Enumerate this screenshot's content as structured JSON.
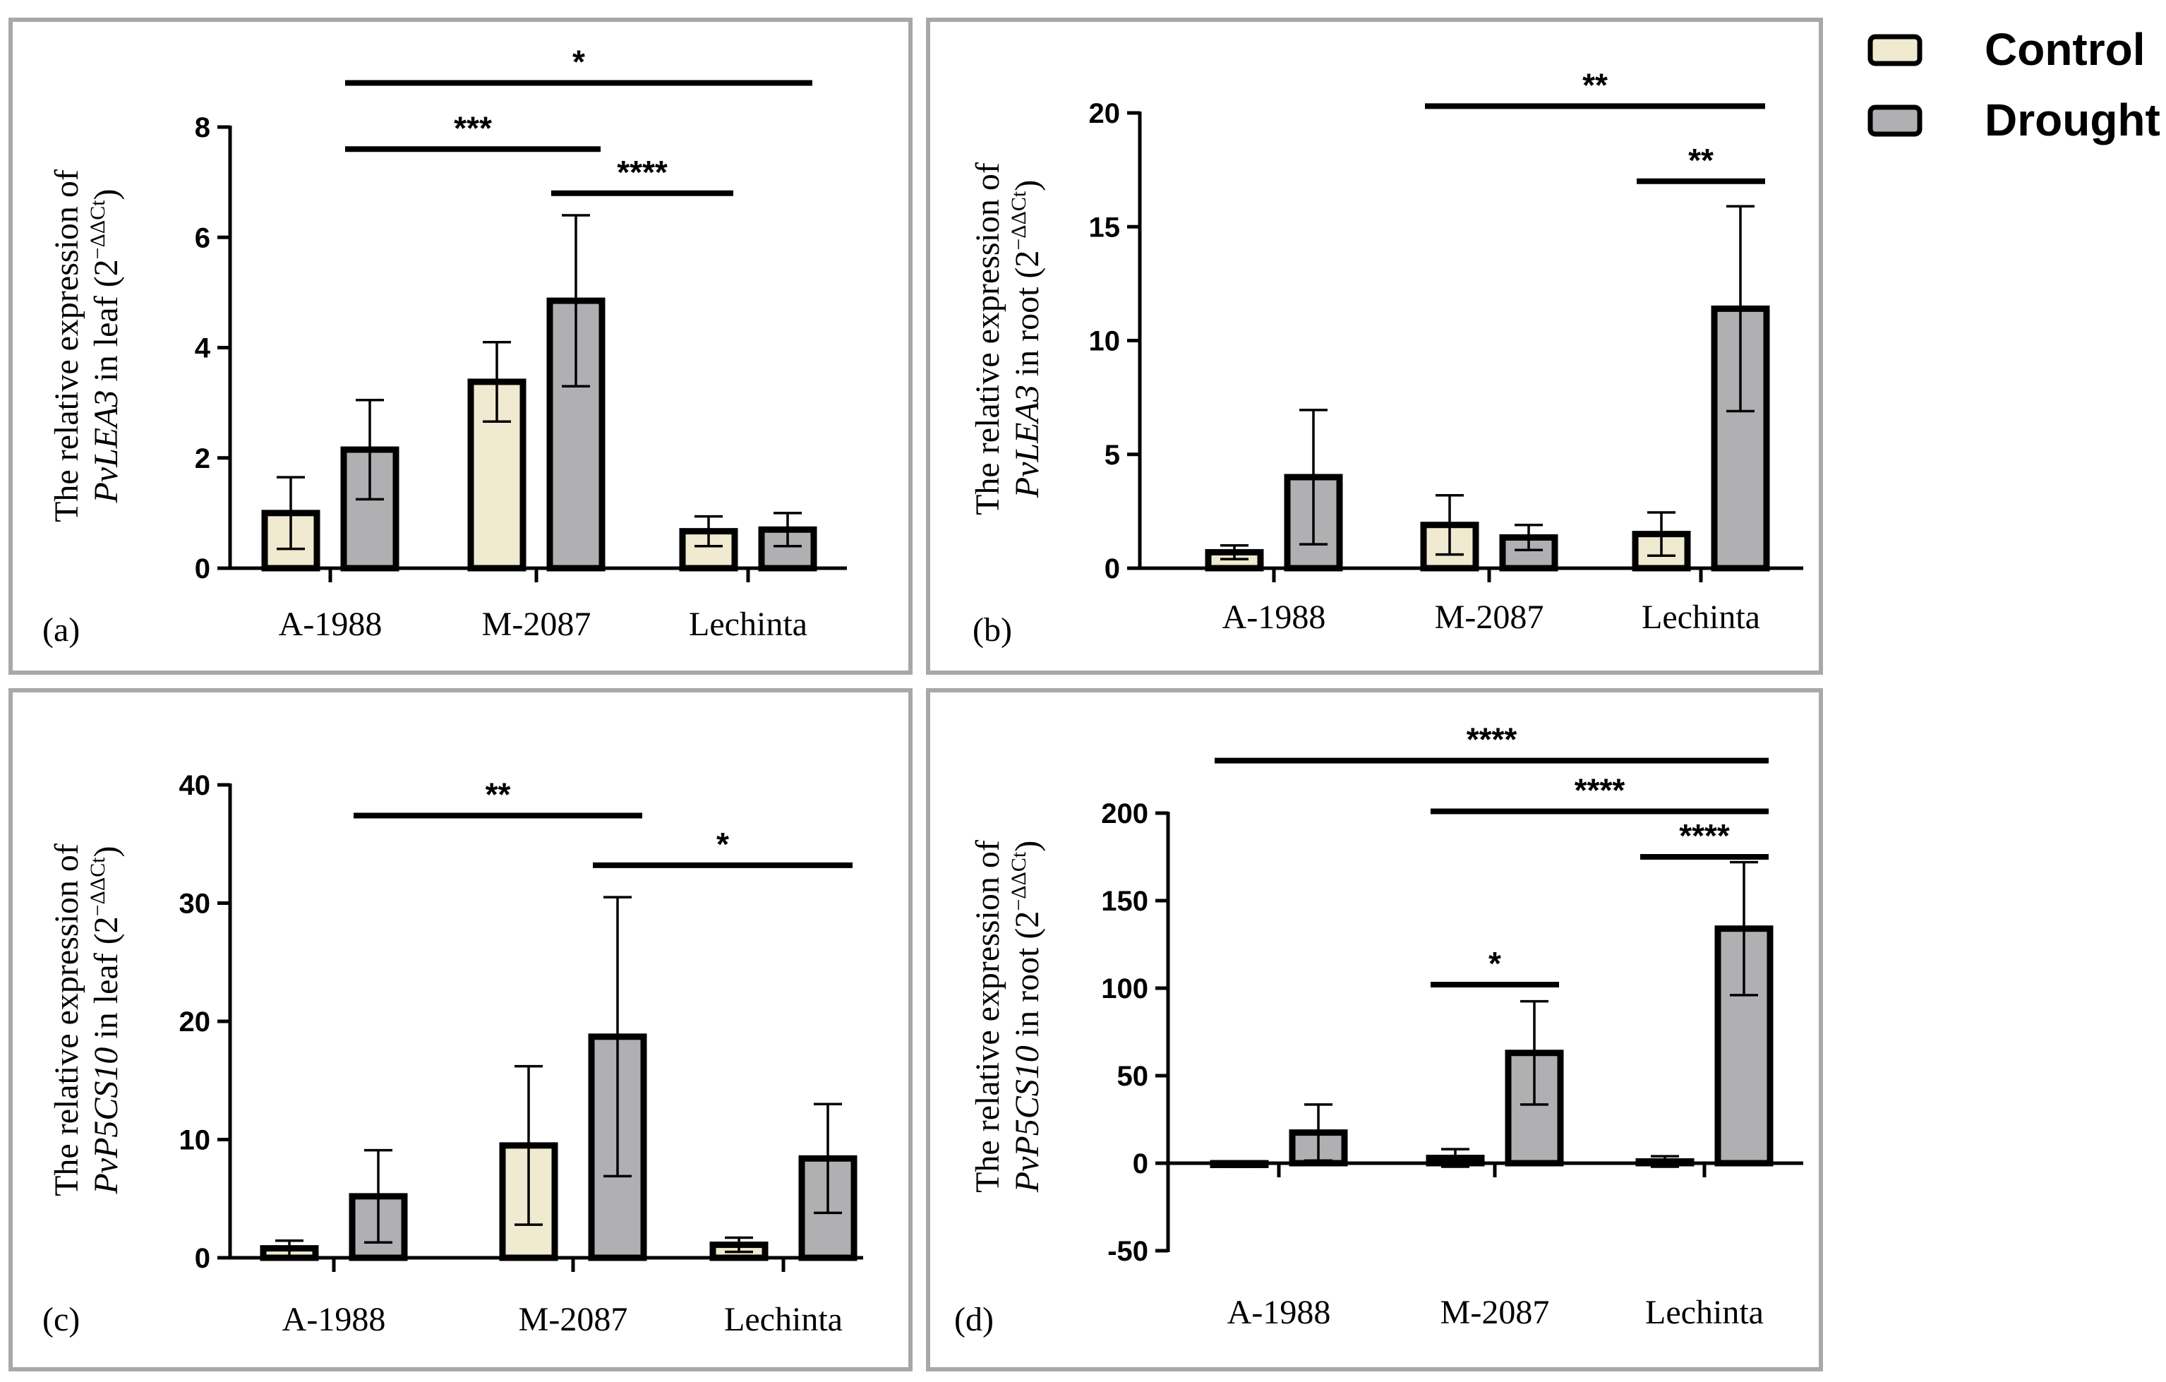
{
  "legend": {
    "items": [
      {
        "label": "Control",
        "color": "#efead0"
      },
      {
        "label": "Drought",
        "color": "#b0b0b3"
      }
    ]
  },
  "colors": {
    "control": "#efead0",
    "drought": "#b0b0b3",
    "frame": "#a8a8a8"
  },
  "chart_data": [
    {
      "type": "bar",
      "panel": "(a)",
      "ylabel": {
        "pre": "The relative expression of",
        "gene": "PvLEA3",
        "post": " in  leaf (2",
        "sup": "−ΔΔCt",
        "close": ")"
      },
      "categories": [
        "A-1988",
        "M-2087",
        "Lechinta"
      ],
      "series": [
        {
          "name": "Control",
          "values": [
            1.0,
            3.38,
            0.67
          ],
          "errors": [
            0.65,
            0.72,
            0.27
          ]
        },
        {
          "name": "Drought",
          "values": [
            2.15,
            4.85,
            0.7
          ],
          "errors": [
            0.9,
            1.55,
            0.3
          ]
        }
      ],
      "ylim": [
        0,
        8
      ],
      "yticks": [
        0,
        2,
        4,
        6,
        8
      ],
      "significance": [
        {
          "from": [
            0,
            "Drought"
          ],
          "to": [
            2,
            "Drought"
          ],
          "label": "*",
          "y": 8.8
        },
        {
          "from": [
            0,
            "Drought"
          ],
          "to": [
            1,
            "Drought"
          ],
          "label": "***",
          "y": 7.6
        },
        {
          "from": [
            1,
            "Drought"
          ],
          "to": [
            2,
            "Control"
          ],
          "label": "****",
          "y": 6.8
        }
      ]
    },
    {
      "type": "bar",
      "panel": "(b)",
      "ylabel": {
        "pre": "The relative expression of",
        "gene": "PvLEA3",
        "post": " in  root (2",
        "sup": "−ΔΔCt",
        "close": ")"
      },
      "categories": [
        "A-1988",
        "M-2087",
        "Lechinta"
      ],
      "series": [
        {
          "name": "Control",
          "values": [
            0.7,
            1.9,
            1.5
          ],
          "errors": [
            0.3,
            1.3,
            0.95
          ]
        },
        {
          "name": "Drought",
          "values": [
            4.0,
            1.35,
            11.4
          ],
          "errors": [
            2.95,
            0.55,
            4.5
          ]
        }
      ],
      "ylim": [
        0,
        20
      ],
      "yticks": [
        0,
        5,
        10,
        15,
        20
      ],
      "significance": [
        {
          "from": [
            1,
            "Control"
          ],
          "to": [
            2,
            "Drought"
          ],
          "label": "**",
          "y": 20.3
        },
        {
          "from": [
            2,
            "Control"
          ],
          "to": [
            2,
            "Drought"
          ],
          "label": "**",
          "y": 17.0
        }
      ]
    },
    {
      "type": "bar",
      "panel": "(c)",
      "ylabel": {
        "pre": "The relative expression of",
        "gene": "PvP5CS10",
        "post": "  in  leaf (2",
        "sup": "−ΔΔCt",
        "close": ")"
      },
      "categories": [
        "A-1988",
        "M-2087",
        "Lechinta"
      ],
      "series": [
        {
          "name": "Control",
          "values": [
            0.8,
            9.5,
            1.1
          ],
          "errors": [
            0.65,
            6.7,
            0.6
          ]
        },
        {
          "name": "Drought",
          "values": [
            5.2,
            18.7,
            8.4
          ],
          "errors": [
            3.9,
            11.8,
            4.6
          ]
        }
      ],
      "ylim": [
        0,
        40
      ],
      "yticks": [
        0,
        10,
        20,
        30,
        40
      ],
      "significance": [
        {
          "from": [
            0,
            "Drought"
          ],
          "to": [
            1,
            "Drought"
          ],
          "label": "**",
          "y": 37.4
        },
        {
          "from": [
            1,
            "Drought"
          ],
          "to": [
            2,
            "Drought"
          ],
          "label": "*",
          "y": 33.2
        }
      ]
    },
    {
      "type": "bar",
      "panel": "(d)",
      "ylabel": {
        "pre": "The relative expression of",
        "gene": "PvP5CS10",
        "post": "  in  root (2",
        "sup": "−ΔΔCt",
        "close": ")"
      },
      "categories": [
        "A-1988",
        "M-2087",
        "Lechinta"
      ],
      "series": [
        {
          "name": "Control",
          "values": [
            -1.0,
            3.0,
            1.0
          ],
          "errors": [
            1.0,
            5.0,
            3.0
          ]
        },
        {
          "name": "Drought",
          "values": [
            17.5,
            63.0,
            134.0
          ],
          "errors": [
            16.0,
            29.5,
            38.0
          ]
        }
      ],
      "ylim": [
        -50,
        200
      ],
      "yticks": [
        -50,
        0,
        50,
        100,
        150,
        200
      ],
      "significance": [
        {
          "from": [
            0,
            "Control"
          ],
          "to": [
            2,
            "Drought"
          ],
          "label": "****",
          "y": 230
        },
        {
          "from": [
            1,
            "Control"
          ],
          "to": [
            2,
            "Drought"
          ],
          "label": "****",
          "y": 201
        },
        {
          "from": [
            2,
            "Control"
          ],
          "to": [
            2,
            "Drought"
          ],
          "label": "****",
          "y": 175
        },
        {
          "from": [
            1,
            "Control"
          ],
          "to": [
            1,
            "Drought"
          ],
          "label": "*",
          "y": 102
        }
      ]
    }
  ]
}
